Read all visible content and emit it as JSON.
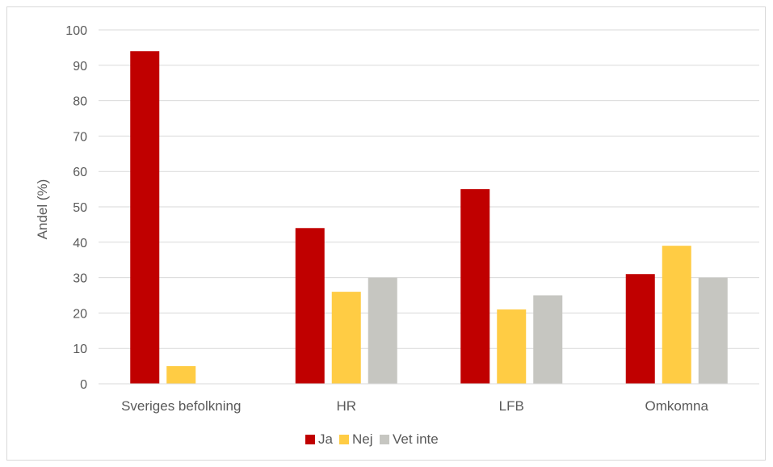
{
  "chart_data": {
    "type": "bar",
    "title": "",
    "xlabel": "",
    "ylabel": "Andel (%)",
    "ylim": [
      0,
      100
    ],
    "yticks": [
      0,
      10,
      20,
      30,
      40,
      50,
      60,
      70,
      80,
      90,
      100
    ],
    "grid": true,
    "legend_position": "bottom",
    "categories": [
      "Sveriges befolkning",
      "HR",
      "LFB",
      "Omkomna"
    ],
    "series": [
      {
        "name": "Ja",
        "color": "#c00000",
        "values": [
          94,
          44,
          55,
          31
        ]
      },
      {
        "name": "Nej",
        "color": "#ffcc44",
        "values": [
          5,
          26,
          21,
          39
        ]
      },
      {
        "name": "Vet inte",
        "color": "#c6c6c1",
        "values": [
          0,
          30,
          25,
          30
        ]
      }
    ]
  }
}
